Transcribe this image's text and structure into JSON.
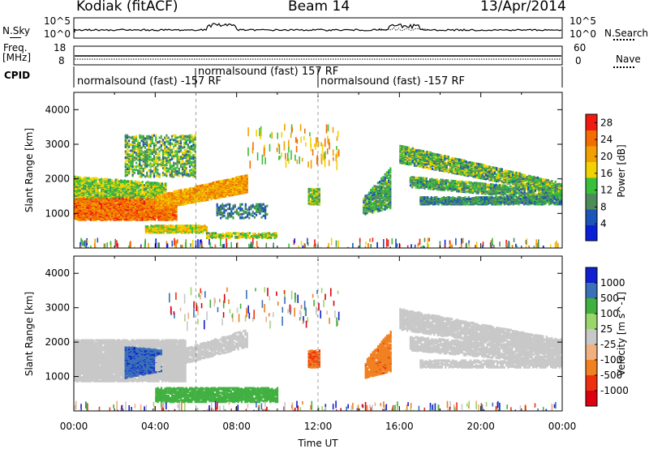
{
  "header": {
    "station": "Kodiak (fitACF)",
    "beam": "Beam 14",
    "date": "13/Apr/2014"
  },
  "strip_labels": {
    "nsky": "N.Sky",
    "freq_line1": "Freq.",
    "freq_line2": "[MHz]",
    "cpid": "CPID",
    "nsearch": "N.Search",
    "nave": "Nave",
    "nsky_ticks": [
      "10^5",
      "10^0"
    ],
    "freq_ticks": [
      "18",
      "8"
    ],
    "nave_ticks": [
      "60",
      "0"
    ]
  },
  "cpid_segments": [
    {
      "label": "normalsound (fast) -157 RF"
    },
    {
      "label": "normalsound (fast) 157 RF"
    },
    {
      "label": "normalsound (fast) -157 RF"
    }
  ],
  "colors": {
    "power": [
      "#0a1fd8",
      "#1d54b8",
      "#4d8c58",
      "#38c03a",
      "#f2d200",
      "#f0a000",
      "#f36d00",
      "#f01a10"
    ],
    "velocity": [
      "#1020d0",
      "#3a70b8",
      "#40b040",
      "#9ad66a",
      "#c8c8c8",
      "#f0b080",
      "#f08020",
      "#ee3010",
      "#dd0010"
    ]
  },
  "chart_data": [
    {
      "type": "heatmap",
      "title": "",
      "xlabel": "Time UT",
      "ylabel": "Slant Range [km]",
      "xlim": [
        "00:00",
        "24:00"
      ],
      "ylim": [
        0,
        4500
      ],
      "x_ticks": [
        "00:00",
        "04:00",
        "08:00",
        "12:00",
        "16:00",
        "20:00",
        "00:00"
      ],
      "y_ticks": [
        1000,
        2000,
        3000,
        4000
      ],
      "colorbar": {
        "label": "Power [dB]",
        "ticks": [
          4,
          8,
          12,
          16,
          20,
          24,
          28
        ],
        "range": [
          0,
          30
        ]
      },
      "features": [
        {
          "time_start": "00:00",
          "time_end": "05:00",
          "range_start": 850,
          "range_end": 1500,
          "power_db": 24
        },
        {
          "time_start": "00:00",
          "time_end": "04:30",
          "range_start": 1500,
          "range_end": 2100,
          "power_db": 12
        },
        {
          "time_start": "05:00",
          "time_end": "08:30",
          "range_start": 1200,
          "range_end": 1800,
          "power_db": 20
        },
        {
          "time_start": "16:00",
          "time_end": "24:00",
          "range_start": 1400,
          "range_end": 2500,
          "power_db": 12
        },
        {
          "time_start": "11:30",
          "time_end": "12:00",
          "range_start": 1300,
          "range_end": 1800,
          "power_db": 14
        }
      ]
    },
    {
      "type": "heatmap",
      "title": "",
      "xlabel": "Time UT",
      "ylabel": "Slant Range [km]",
      "xlim": [
        "00:00",
        "24:00"
      ],
      "ylim": [
        0,
        4500
      ],
      "x_ticks": [
        "00:00",
        "04:00",
        "08:00",
        "12:00",
        "16:00",
        "20:00",
        "00:00"
      ],
      "y_ticks": [
        1000,
        2000,
        3000,
        4000
      ],
      "colorbar": {
        "label": "Velocity [m s^-1]",
        "ticks": [
          1000,
          500,
          100,
          25,
          -25,
          -100,
          -500,
          -1000
        ]
      },
      "features": [
        {
          "time_start": "00:00",
          "time_end": "05:30",
          "range_start": 900,
          "range_end": 2100,
          "velocity": 0
        },
        {
          "time_start": "02:30",
          "time_end": "04:30",
          "range_start": 1000,
          "range_end": 2000,
          "velocity": 700
        },
        {
          "time_start": "04:00",
          "time_end": "10:00",
          "range_start": 300,
          "range_end": 700,
          "velocity": 100
        },
        {
          "time_start": "11:30",
          "time_end": "12:00",
          "range_start": 1300,
          "range_end": 1800,
          "velocity": -500
        },
        {
          "time_start": "14:30",
          "time_end": "15:30",
          "range_start": 1000,
          "range_end": 2300,
          "velocity": -300
        },
        {
          "time_start": "16:00",
          "time_end": "24:00",
          "range_start": 1300,
          "range_end": 2500,
          "velocity": 0
        }
      ]
    }
  ]
}
